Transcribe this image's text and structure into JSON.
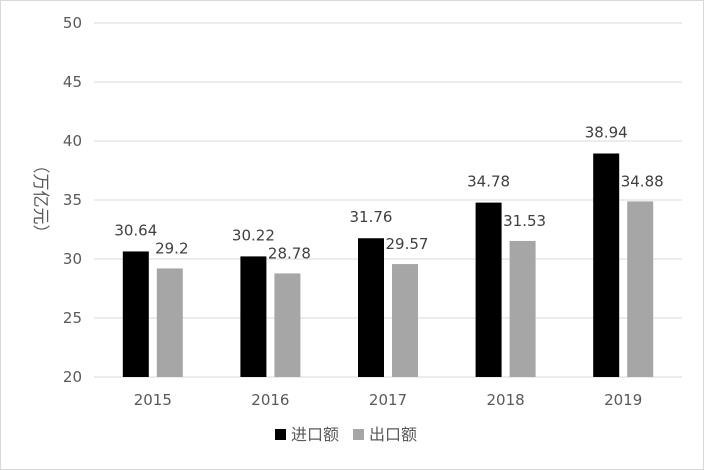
{
  "chart_data": {
    "type": "bar",
    "title": "",
    "xlabel": "",
    "ylabel": "（万亿元）",
    "ylim": [
      20,
      50
    ],
    "yticks": [
      20,
      25,
      30,
      35,
      40,
      45,
      50
    ],
    "grid": true,
    "categories": [
      "2015",
      "2016",
      "2017",
      "2018",
      "2019"
    ],
    "series": [
      {
        "name": "进口额",
        "color": "#000000",
        "values": [
          30.64,
          30.22,
          31.76,
          34.78,
          38.94
        ]
      },
      {
        "name": "出口额",
        "color": "#a6a6a6",
        "values": [
          29.2,
          28.78,
          29.57,
          31.53,
          34.88
        ]
      }
    ],
    "legend_position": "bottom"
  }
}
